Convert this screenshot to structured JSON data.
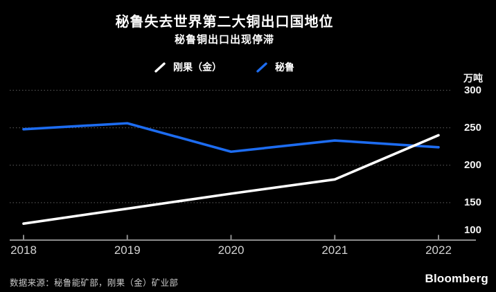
{
  "chart_data": {
    "type": "line",
    "title": "秘鲁失去世界第二大铜出口国地位",
    "subtitle": "秘鲁铜出口出现停滞",
    "unit_label": "万吨",
    "x": [
      2018,
      2019,
      2020,
      2021,
      2022
    ],
    "series": [
      {
        "name": "刚果（金）",
        "color": "#ffffff",
        "values": [
          122,
          142,
          162,
          181,
          240
        ]
      },
      {
        "name": "秘鲁",
        "color": "#1d6cf0",
        "values": [
          248,
          256,
          218,
          233,
          224
        ]
      }
    ],
    "ylim": [
      100,
      300
    ],
    "yticks": [
      100,
      150,
      200,
      250,
      300
    ],
    "grid": "horizontal-dotted",
    "gridline_color": "#4f4f4f",
    "axis_color": "#8c8c8c",
    "background_color": "#000000",
    "legend_position": "top-center"
  },
  "footer": {
    "source": "数据来源：秘鲁能矿部，刚果（金）矿业部",
    "brand": "Bloomberg"
  }
}
